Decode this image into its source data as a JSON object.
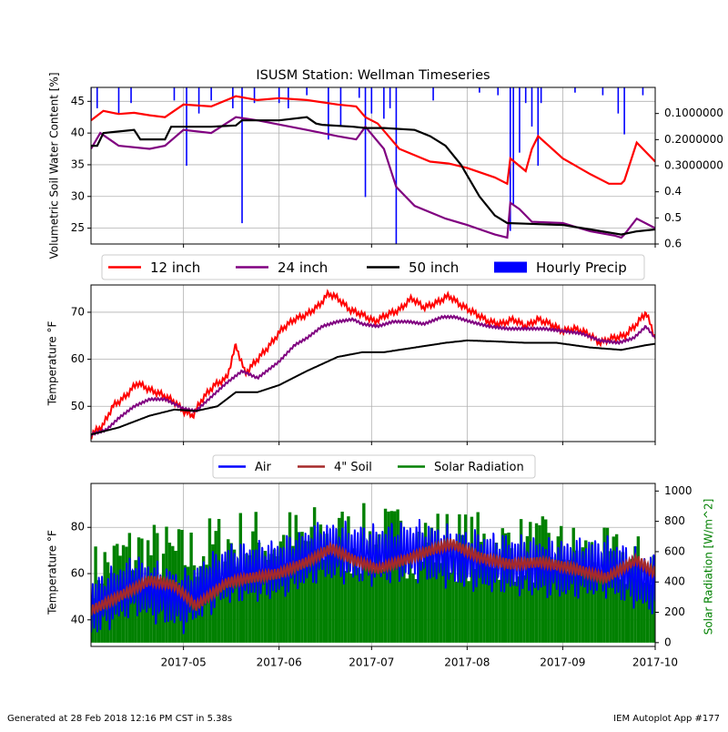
{
  "colors": {
    "soil12": "#ff0000",
    "soil24": "#800080",
    "soil50": "#000000",
    "precip": "#0000ff",
    "air": "#0000ff",
    "soil4": "#a52a2a",
    "solar": "#008000",
    "grid": "#b0b0b0"
  },
  "chart_data": [
    {
      "type": "line",
      "title": "ISUSM Station: Wellman Timeseries",
      "ylabel": "Volumetric Soil Water Content [%]",
      "ylim": [
        22.5,
        47.2
      ],
      "yticks": [
        25,
        30,
        35,
        40,
        45
      ],
      "y2lim": [
        0.6,
        0.0
      ],
      "y2ticks": [
        "0.1000000",
        "0.2000000",
        "0.3000000",
        "0.4",
        "0.5",
        "0.6"
      ],
      "y2values": [
        0.1,
        0.2,
        0.3,
        0.4,
        0.5,
        0.6
      ],
      "grid": true,
      "legend": {
        "placement": "bottom",
        "entries": [
          "12 inch",
          "24 inch",
          "50 inch",
          "Hourly Precip"
        ]
      },
      "series": [
        {
          "name": "12 inch",
          "key": "soil12",
          "x": [
            "2017-04-01",
            "2017-04-05",
            "2017-04-10",
            "2017-04-15",
            "2017-04-20",
            "2017-04-25",
            "2017-05-01",
            "2017-05-10",
            "2017-05-18",
            "2017-05-25",
            "2017-06-01",
            "2017-06-10",
            "2017-06-20",
            "2017-06-26",
            "2017-06-29",
            "2017-07-03",
            "2017-07-10",
            "2017-07-20",
            "2017-07-26",
            "2017-08-01",
            "2017-08-10",
            "2017-08-14",
            "2017-08-15",
            "2017-08-20",
            "2017-08-22",
            "2017-08-24",
            "2017-09-01",
            "2017-09-10",
            "2017-09-16",
            "2017-09-20",
            "2017-09-21",
            "2017-09-25",
            "2017-10-01"
          ],
          "values": [
            42,
            43.5,
            43,
            43.2,
            42.8,
            42.5,
            44.5,
            44.2,
            45.8,
            45.2,
            45.5,
            45.2,
            44.5,
            44.2,
            42.5,
            41.5,
            37.5,
            35.5,
            35.2,
            34.5,
            33,
            32,
            36,
            34,
            37.5,
            39.5,
            36,
            33.5,
            32,
            32,
            32.5,
            38.5,
            35.5
          ]
        },
        {
          "name": "24 inch",
          "key": "soil24",
          "x": [
            "2017-04-01",
            "2017-04-04",
            "2017-04-10",
            "2017-04-20",
            "2017-04-25",
            "2017-05-01",
            "2017-05-10",
            "2017-05-18",
            "2017-05-25",
            "2017-06-10",
            "2017-06-20",
            "2017-06-26",
            "2017-06-29",
            "2017-07-05",
            "2017-07-09",
            "2017-07-15",
            "2017-07-25",
            "2017-08-01",
            "2017-08-10",
            "2017-08-14",
            "2017-08-15",
            "2017-08-18",
            "2017-08-22",
            "2017-09-01",
            "2017-09-10",
            "2017-09-18",
            "2017-09-20",
            "2017-09-21",
            "2017-09-25",
            "2017-10-01"
          ],
          "values": [
            37.5,
            40,
            38,
            37.5,
            38,
            40.5,
            40,
            42.5,
            42,
            40.5,
            39.5,
            39,
            41,
            37.5,
            31.5,
            28.5,
            26.5,
            25.5,
            24,
            23.5,
            29,
            28,
            26,
            25.8,
            24.5,
            23.8,
            23.5,
            24,
            26.5,
            25
          ]
        },
        {
          "name": "50 inch",
          "key": "soil50",
          "x": [
            "2017-04-01",
            "2017-04-03",
            "2017-04-05",
            "2017-04-15",
            "2017-04-17",
            "2017-04-25",
            "2017-04-27",
            "2017-05-10",
            "2017-05-18",
            "2017-05-20",
            "2017-06-01",
            "2017-06-10",
            "2017-06-13",
            "2017-06-15",
            "2017-06-25",
            "2017-06-29",
            "2017-07-05",
            "2017-07-15",
            "2017-07-20",
            "2017-07-25",
            "2017-07-30",
            "2017-08-05",
            "2017-08-10",
            "2017-08-14",
            "2017-08-20",
            "2017-09-01",
            "2017-09-10",
            "2017-09-20",
            "2017-09-25",
            "2017-10-01"
          ],
          "values": [
            38,
            38,
            40,
            40.5,
            39,
            39,
            41,
            41,
            41.2,
            42,
            42,
            42.5,
            41.5,
            41.3,
            41,
            40.8,
            40.8,
            40.5,
            39.5,
            38,
            35,
            30,
            27,
            25.8,
            25.7,
            25.5,
            24.8,
            24,
            24.5,
            24.8
          ]
        },
        {
          "name": "Hourly Precip",
          "key": "precip",
          "axis": "right",
          "type": "bar",
          "x": [
            "2017-04-01",
            "2017-04-03",
            "2017-04-10",
            "2017-04-14",
            "2017-04-28",
            "2017-05-02",
            "2017-05-06",
            "2017-05-10",
            "2017-05-17",
            "2017-05-20",
            "2017-05-24",
            "2017-06-01",
            "2017-06-04",
            "2017-06-10",
            "2017-06-17",
            "2017-06-21",
            "2017-06-27",
            "2017-06-29",
            "2017-07-01",
            "2017-07-05",
            "2017-07-07",
            "2017-07-09",
            "2017-07-21",
            "2017-08-05",
            "2017-08-11",
            "2017-08-15",
            "2017-08-16",
            "2017-08-18",
            "2017-08-20",
            "2017-08-22",
            "2017-08-24",
            "2017-08-25",
            "2017-09-05",
            "2017-09-14",
            "2017-09-19",
            "2017-09-21",
            "2017-09-27"
          ],
          "values": [
            0.12,
            0.08,
            0.1,
            0.06,
            0.05,
            0.3,
            0.1,
            0.05,
            0.08,
            0.52,
            0.06,
            0.06,
            0.08,
            0.03,
            0.2,
            0.15,
            0.04,
            0.42,
            0.1,
            0.12,
            0.08,
            0.62,
            0.05,
            0.02,
            0.03,
            0.55,
            0.45,
            0.25,
            0.06,
            0.15,
            0.3,
            0.06,
            0.02,
            0.03,
            0.1,
            0.18,
            0.03
          ]
        }
      ]
    },
    {
      "type": "line",
      "ylabel": "Temperature  °F",
      "ylim": [
        42.5,
        75.8
      ],
      "yticks": [
        50,
        60,
        70
      ],
      "grid": true,
      "series": [
        {
          "name": "12 inch",
          "key": "soil12",
          "x": [
            "2017-04-01",
            "2017-04-05",
            "2017-04-08",
            "2017-04-12",
            "2017-04-16",
            "2017-04-20",
            "2017-04-24",
            "2017-04-28",
            "2017-05-01",
            "2017-05-04",
            "2017-05-07",
            "2017-05-11",
            "2017-05-15",
            "2017-05-18",
            "2017-05-21",
            "2017-05-25",
            "2017-05-29",
            "2017-06-02",
            "2017-06-06",
            "2017-06-10",
            "2017-06-14",
            "2017-06-17",
            "2017-06-20",
            "2017-06-24",
            "2017-06-28",
            "2017-07-02",
            "2017-07-06",
            "2017-07-10",
            "2017-07-14",
            "2017-07-18",
            "2017-07-22",
            "2017-07-26",
            "2017-07-30",
            "2017-08-03",
            "2017-08-08",
            "2017-08-12",
            "2017-08-16",
            "2017-08-20",
            "2017-08-24",
            "2017-08-28",
            "2017-09-01",
            "2017-09-05",
            "2017-09-09",
            "2017-09-13",
            "2017-09-17",
            "2017-09-21",
            "2017-09-25",
            "2017-09-28",
            "2017-10-01"
          ],
          "values": [
            44,
            46,
            50,
            52,
            55,
            53.5,
            52.5,
            51,
            49,
            48,
            51.5,
            54.5,
            56,
            63,
            57,
            60,
            63,
            66.5,
            68.5,
            69.5,
            71.5,
            74,
            73,
            70.5,
            69.5,
            68,
            69.5,
            70.5,
            73,
            71,
            72,
            73.5,
            71.5,
            70,
            68,
            67.5,
            68.5,
            67,
            68.5,
            67.5,
            66,
            66.5,
            65.5,
            63.5,
            64.5,
            65,
            67.5,
            70,
            64.5
          ]
        },
        {
          "name": "24 inch",
          "key": "soil24",
          "x": [
            "2017-04-01",
            "2017-04-06",
            "2017-04-10",
            "2017-04-15",
            "2017-04-20",
            "2017-04-25",
            "2017-05-01",
            "2017-05-05",
            "2017-05-10",
            "2017-05-15",
            "2017-05-20",
            "2017-05-25",
            "2017-06-01",
            "2017-06-06",
            "2017-06-10",
            "2017-06-15",
            "2017-06-20",
            "2017-06-25",
            "2017-06-28",
            "2017-07-03",
            "2017-07-08",
            "2017-07-13",
            "2017-07-18",
            "2017-07-24",
            "2017-07-28",
            "2017-08-02",
            "2017-08-08",
            "2017-08-14",
            "2017-08-20",
            "2017-08-26",
            "2017-09-01",
            "2017-09-07",
            "2017-09-13",
            "2017-09-19",
            "2017-09-24",
            "2017-09-28",
            "2017-10-01"
          ],
          "values": [
            44,
            45,
            47.5,
            50,
            51.5,
            51.5,
            49.5,
            49,
            52,
            55,
            57.5,
            56,
            59.5,
            63,
            64.5,
            67,
            68,
            68.5,
            67.5,
            67,
            68,
            68,
            67.5,
            69,
            69,
            68,
            67,
            66.5,
            66.5,
            66.5,
            66,
            65.5,
            64,
            63.5,
            64.5,
            67,
            64.5
          ]
        },
        {
          "name": "50 inch",
          "key": "soil50",
          "x": [
            "2017-04-01",
            "2017-04-10",
            "2017-04-20",
            "2017-04-28",
            "2017-05-05",
            "2017-05-12",
            "2017-05-18",
            "2017-05-25",
            "2017-06-01",
            "2017-06-10",
            "2017-06-20",
            "2017-06-28",
            "2017-07-05",
            "2017-07-15",
            "2017-07-25",
            "2017-08-01",
            "2017-08-10",
            "2017-08-20",
            "2017-08-30",
            "2017-09-10",
            "2017-09-20",
            "2017-09-28",
            "2017-10-01"
          ],
          "values": [
            44,
            45.5,
            48,
            49.3,
            49,
            50,
            53,
            53,
            54.5,
            57.5,
            60.5,
            61.5,
            61.5,
            62.5,
            63.5,
            64,
            63.8,
            63.5,
            63.5,
            62.5,
            62,
            63,
            63.3
          ]
        }
      ]
    },
    {
      "type": "line",
      "ylabel": "Temperature  °F",
      "ylim": [
        28.5,
        99
      ],
      "yticks": [
        40,
        60,
        80
      ],
      "y2label": "Solar Radiation [W/m^2]",
      "y2lim": [
        -25,
        1050
      ],
      "y2ticks": [
        0,
        200,
        400,
        600,
        800,
        1000
      ],
      "xticks": [
        "2017-05",
        "2017-06",
        "2017-07",
        "2017-08",
        "2017-09",
        "2017-10"
      ],
      "xlim": [
        "2017-04-01",
        "2017-10-01"
      ],
      "grid": true,
      "legend": {
        "placement": "top",
        "entries": [
          "Air",
          "4\" Soil",
          "Solar Radiation"
        ]
      },
      "series": [
        {
          "name": "Air",
          "key": "air",
          "daily_mean": {
            "x": [
              "2017-04-01",
              "2017-04-15",
              "2017-05-01",
              "2017-05-15",
              "2017-06-01",
              "2017-06-15",
              "2017-07-01",
              "2017-07-15",
              "2017-08-01",
              "2017-08-15",
              "2017-09-01",
              "2017-09-15",
              "2017-10-01"
            ],
            "values": [
              45,
              55,
              48,
              60,
              62,
              70,
              68,
              70,
              66,
              64,
              62,
              63,
              55
            ]
          },
          "daily_range": [
            12,
            30
          ]
        },
        {
          "name": "4\" Soil",
          "key": "soil4",
          "x": [
            "2017-04-01",
            "2017-04-10",
            "2017-04-20",
            "2017-04-28",
            "2017-05-05",
            "2017-05-15",
            "2017-05-22",
            "2017-06-01",
            "2017-06-10",
            "2017-06-18",
            "2017-06-25",
            "2017-07-03",
            "2017-07-12",
            "2017-07-20",
            "2017-07-27",
            "2017-08-05",
            "2017-08-15",
            "2017-08-25",
            "2017-09-05",
            "2017-09-15",
            "2017-09-25",
            "2017-10-01"
          ],
          "values": [
            44,
            50,
            57,
            55,
            46,
            56,
            58,
            60,
            65,
            71,
            66,
            62,
            66,
            70,
            73,
            67,
            64,
            65,
            62,
            58,
            66,
            60
          ]
        },
        {
          "name": "Solar Radiation",
          "key": "solar",
          "axis": "right",
          "type": "bar",
          "daily_peak": {
            "x": [
              "2017-04-01",
              "2017-04-15",
              "2017-05-01",
              "2017-05-15",
              "2017-06-01",
              "2017-06-15",
              "2017-07-01",
              "2017-07-15",
              "2017-08-01",
              "2017-08-15",
              "2017-09-01",
              "2017-09-15",
              "2017-10-01"
            ],
            "values": [
              650,
              830,
              780,
              900,
              900,
              930,
              920,
              930,
              880,
              860,
              820,
              760,
              700
            ]
          }
        }
      ]
    }
  ],
  "footer": {
    "left": "Generated at 28 Feb 2018 12:16 PM CST in 5.38s",
    "right": "IEM Autoplot App #177"
  }
}
